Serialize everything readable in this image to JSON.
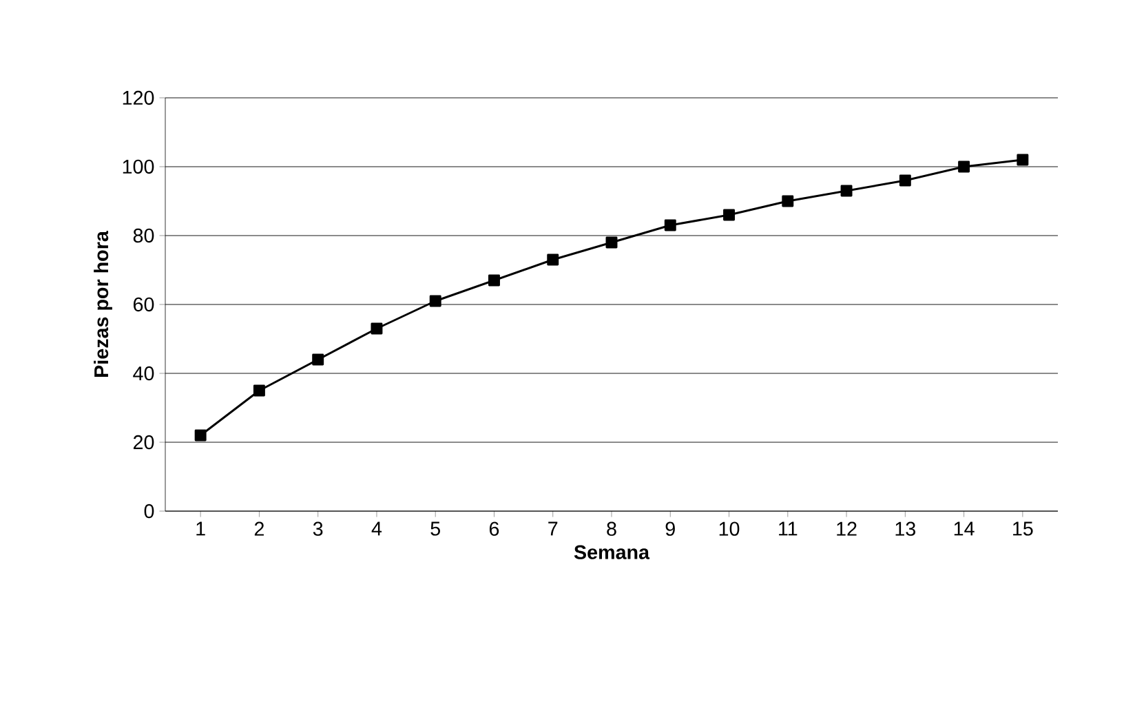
{
  "chart_data": {
    "type": "line",
    "xlabel": "Semana",
    "ylabel": "Piezas por hora",
    "categories": [
      "1",
      "2",
      "3",
      "4",
      "5",
      "6",
      "7",
      "8",
      "9",
      "10",
      "11",
      "12",
      "13",
      "14",
      "15"
    ],
    "series": [
      {
        "color": "#000000",
        "values": [
          22,
          35,
          44,
          53,
          61,
          67,
          73,
          78,
          83,
          86,
          90,
          93,
          96,
          100,
          102
        ]
      }
    ],
    "ylim": [
      0,
      120
    ],
    "yticks": [
      0,
      20,
      40,
      60,
      80,
      100,
      120
    ],
    "grid": "y",
    "marker": "square",
    "line_style": "solid"
  }
}
